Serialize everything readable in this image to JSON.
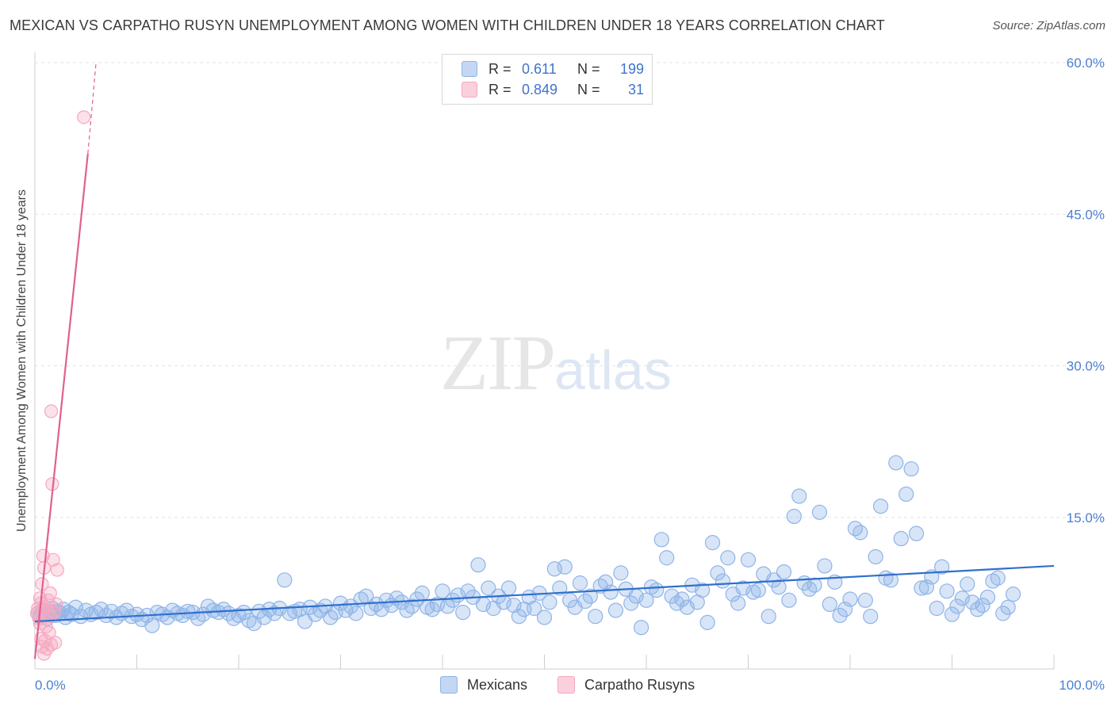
{
  "chart_data": {
    "type": "scatter",
    "title": "MEXICAN VS CARPATHO RUSYN UNEMPLOYMENT AMONG WOMEN WITH CHILDREN UNDER 18 YEARS CORRELATION CHART",
    "source": "Source: ZipAtlas.com",
    "ylabel": "Unemployment Among Women with Children Under 18 years",
    "xlim": [
      0,
      100
    ],
    "ylim": [
      0,
      60
    ],
    "x_tick_labels": [
      "0.0%",
      "100.0%"
    ],
    "y_ticks": [
      15,
      30,
      45,
      60
    ],
    "y_tick_labels": [
      "15.0%",
      "30.0%",
      "45.0%",
      "60.0%"
    ],
    "watermark": {
      "zip": "ZIP",
      "atlas": "atlas"
    },
    "legend": {
      "rows": [
        {
          "r_label": "R =",
          "r_value": "0.611",
          "n_label": "N =",
          "n_value": "199"
        },
        {
          "r_label": "R =",
          "r_value": "0.849",
          "n_label": "N =",
          "n_value": "31"
        }
      ]
    },
    "series": [
      {
        "name": "Mexicans",
        "color": "#8fb4e8",
        "line_color": "#2f6fcc",
        "trend": [
          [
            0,
            4.7
          ],
          [
            100,
            10.2
          ]
        ],
        "points": [
          [
            0.3,
            5.5
          ],
          [
            0.5,
            5.2
          ],
          [
            0.8,
            5.8
          ],
          [
            1.0,
            5.4
          ],
          [
            1.2,
            5.0
          ],
          [
            1.5,
            5.6
          ],
          [
            1.7,
            6.0
          ],
          [
            2.0,
            5.3
          ],
          [
            2.2,
            5.7
          ],
          [
            2.5,
            5.5
          ],
          [
            2.8,
            5.9
          ],
          [
            3.0,
            5.1
          ],
          [
            3.3,
            5.6
          ],
          [
            3.6,
            5.4
          ],
          [
            4.0,
            6.1
          ],
          [
            4.5,
            5.2
          ],
          [
            5.0,
            5.8
          ],
          [
            5.5,
            5.4
          ],
          [
            6.0,
            5.6
          ],
          [
            6.5,
            5.9
          ],
          [
            7.0,
            5.3
          ],
          [
            7.5,
            5.7
          ],
          [
            8.0,
            5.1
          ],
          [
            8.5,
            5.5
          ],
          [
            9.0,
            5.8
          ],
          [
            9.5,
            5.2
          ],
          [
            10.0,
            5.4
          ],
          [
            10.5,
            4.9
          ],
          [
            11.0,
            5.3
          ],
          [
            11.5,
            4.3
          ],
          [
            12.0,
            5.6
          ],
          [
            12.5,
            5.4
          ],
          [
            13.0,
            5.1
          ],
          [
            13.5,
            5.8
          ],
          [
            14.0,
            5.5
          ],
          [
            14.5,
            5.3
          ],
          [
            15.0,
            5.7
          ],
          [
            15.5,
            5.6
          ],
          [
            16.0,
            5.0
          ],
          [
            16.5,
            5.4
          ],
          [
            17.0,
            6.2
          ],
          [
            17.5,
            5.8
          ],
          [
            18.0,
            5.6
          ],
          [
            18.5,
            5.9
          ],
          [
            19.0,
            5.5
          ],
          [
            19.5,
            5.0
          ],
          [
            20.0,
            5.3
          ],
          [
            20.5,
            5.6
          ],
          [
            21.0,
            4.8
          ],
          [
            21.5,
            4.5
          ],
          [
            22.0,
            5.7
          ],
          [
            22.5,
            5.1
          ],
          [
            23.0,
            5.9
          ],
          [
            23.5,
            5.5
          ],
          [
            24.0,
            6.0
          ],
          [
            24.5,
            8.8
          ],
          [
            25.0,
            5.5
          ],
          [
            25.5,
            5.7
          ],
          [
            26.0,
            5.9
          ],
          [
            26.5,
            4.7
          ],
          [
            27.0,
            6.1
          ],
          [
            27.5,
            5.4
          ],
          [
            28.0,
            5.8
          ],
          [
            28.5,
            6.2
          ],
          [
            29.0,
            5.1
          ],
          [
            29.5,
            5.6
          ],
          [
            30.0,
            6.5
          ],
          [
            30.5,
            5.8
          ],
          [
            31.0,
            6.2
          ],
          [
            31.5,
            5.5
          ],
          [
            32.0,
            6.9
          ],
          [
            32.5,
            7.2
          ],
          [
            33.0,
            6.0
          ],
          [
            33.5,
            6.4
          ],
          [
            34.0,
            5.9
          ],
          [
            34.5,
            6.8
          ],
          [
            35.0,
            6.3
          ],
          [
            35.5,
            7.0
          ],
          [
            36.0,
            6.6
          ],
          [
            36.5,
            5.8
          ],
          [
            37.0,
            6.2
          ],
          [
            37.5,
            6.9
          ],
          [
            38.0,
            7.5
          ],
          [
            38.5,
            6.1
          ],
          [
            39.0,
            5.9
          ],
          [
            39.5,
            6.4
          ],
          [
            40.0,
            7.7
          ],
          [
            40.5,
            6.2
          ],
          [
            41.0,
            6.8
          ],
          [
            41.5,
            7.3
          ],
          [
            42.0,
            5.6
          ],
          [
            42.5,
            7.7
          ],
          [
            43.0,
            7.1
          ],
          [
            43.5,
            10.3
          ],
          [
            44.0,
            6.4
          ],
          [
            44.5,
            8.0
          ],
          [
            45.0,
            6.0
          ],
          [
            45.5,
            7.2
          ],
          [
            46.0,
            6.6
          ],
          [
            46.5,
            8.0
          ],
          [
            47.0,
            6.3
          ],
          [
            47.5,
            5.2
          ],
          [
            48.0,
            5.9
          ],
          [
            48.5,
            7.1
          ],
          [
            49.0,
            6.0
          ],
          [
            49.5,
            7.5
          ],
          [
            50.0,
            5.1
          ],
          [
            50.5,
            6.6
          ],
          [
            51.0,
            9.9
          ],
          [
            51.5,
            8.0
          ],
          [
            52.0,
            10.1
          ],
          [
            52.5,
            6.8
          ],
          [
            53.0,
            6.1
          ],
          [
            53.5,
            8.5
          ],
          [
            54.0,
            6.7
          ],
          [
            54.5,
            7.2
          ],
          [
            55.0,
            5.2
          ],
          [
            55.5,
            8.2
          ],
          [
            56.0,
            8.6
          ],
          [
            56.5,
            7.6
          ],
          [
            57.0,
            5.8
          ],
          [
            57.5,
            9.5
          ],
          [
            58.0,
            7.9
          ],
          [
            58.5,
            6.5
          ],
          [
            59.0,
            7.2
          ],
          [
            59.5,
            4.1
          ],
          [
            60.0,
            6.8
          ],
          [
            60.5,
            8.1
          ],
          [
            61.0,
            7.8
          ],
          [
            61.5,
            12.8
          ],
          [
            62.0,
            11.0
          ],
          [
            62.5,
            7.2
          ],
          [
            63.0,
            6.5
          ],
          [
            63.5,
            6.9
          ],
          [
            64.0,
            6.1
          ],
          [
            64.5,
            8.3
          ],
          [
            65.0,
            6.6
          ],
          [
            65.5,
            7.8
          ],
          [
            66.0,
            4.6
          ],
          [
            66.5,
            12.5
          ],
          [
            67.0,
            9.5
          ],
          [
            67.5,
            8.7
          ],
          [
            68.0,
            11.0
          ],
          [
            68.5,
            7.4
          ],
          [
            69.0,
            6.5
          ],
          [
            69.5,
            8.0
          ],
          [
            70.0,
            10.8
          ],
          [
            70.5,
            7.6
          ],
          [
            71.0,
            7.8
          ],
          [
            71.5,
            9.4
          ],
          [
            72.0,
            5.2
          ],
          [
            72.5,
            8.8
          ],
          [
            73.0,
            8.1
          ],
          [
            73.5,
            9.6
          ],
          [
            74.0,
            6.8
          ],
          [
            74.5,
            15.1
          ],
          [
            75.0,
            17.1
          ],
          [
            75.5,
            8.5
          ],
          [
            76.0,
            7.9
          ],
          [
            76.5,
            8.3
          ],
          [
            77.0,
            15.5
          ],
          [
            77.5,
            10.2
          ],
          [
            78.0,
            6.4
          ],
          [
            78.5,
            8.6
          ],
          [
            79.0,
            5.3
          ],
          [
            79.5,
            5.9
          ],
          [
            80.0,
            6.9
          ],
          [
            80.5,
            13.9
          ],
          [
            81.0,
            13.5
          ],
          [
            81.5,
            6.8
          ],
          [
            82.0,
            5.2
          ],
          [
            82.5,
            11.1
          ],
          [
            83.0,
            16.1
          ],
          [
            83.5,
            9.0
          ],
          [
            84.0,
            8.8
          ],
          [
            84.5,
            20.4
          ],
          [
            85.0,
            12.9
          ],
          [
            85.5,
            17.3
          ],
          [
            86.0,
            19.8
          ],
          [
            86.5,
            13.4
          ],
          [
            87.0,
            8.0
          ],
          [
            87.5,
            8.1
          ],
          [
            88.0,
            9.1
          ],
          [
            88.5,
            6.0
          ],
          [
            89.0,
            10.1
          ],
          [
            89.5,
            7.7
          ],
          [
            90.0,
            5.4
          ],
          [
            90.5,
            6.2
          ],
          [
            91.0,
            7.0
          ],
          [
            91.5,
            8.4
          ],
          [
            92.0,
            6.6
          ],
          [
            92.5,
            5.9
          ],
          [
            93.0,
            6.3
          ],
          [
            93.5,
            7.1
          ],
          [
            94.0,
            8.7
          ],
          [
            94.5,
            9.0
          ],
          [
            95.0,
            5.5
          ],
          [
            95.5,
            6.1
          ],
          [
            96.0,
            7.4
          ]
        ]
      },
      {
        "name": "Carpatho Rusyns",
        "color": "#f5a8c0",
        "line_color": "#e0608f",
        "trend": [
          [
            0,
            1.0
          ],
          [
            5.2,
            51.0
          ]
        ],
        "trend_dash": [
          [
            5.2,
            51.0
          ],
          [
            6.0,
            60.0
          ]
        ],
        "points": [
          [
            0.2,
            5.5
          ],
          [
            0.3,
            6.0
          ],
          [
            0.4,
            5.0
          ],
          [
            0.5,
            7.0
          ],
          [
            0.5,
            4.5
          ],
          [
            0.6,
            6.5
          ],
          [
            0.6,
            3.0
          ],
          [
            0.7,
            2.2
          ],
          [
            0.7,
            8.4
          ],
          [
            0.8,
            5.8
          ],
          [
            0.8,
            11.2
          ],
          [
            0.9,
            1.5
          ],
          [
            0.9,
            10.0
          ],
          [
            1.0,
            6.2
          ],
          [
            1.0,
            2.8
          ],
          [
            1.1,
            4.2
          ],
          [
            1.2,
            5.4
          ],
          [
            1.2,
            2.0
          ],
          [
            1.3,
            6.8
          ],
          [
            1.4,
            3.6
          ],
          [
            1.5,
            5.2
          ],
          [
            1.5,
            7.5
          ],
          [
            1.6,
            2.4
          ],
          [
            1.6,
            25.5
          ],
          [
            1.7,
            18.3
          ],
          [
            1.8,
            10.8
          ],
          [
            1.9,
            5.6
          ],
          [
            2.0,
            2.6
          ],
          [
            2.1,
            6.4
          ],
          [
            2.2,
            9.8
          ],
          [
            4.8,
            54.6
          ]
        ]
      }
    ]
  }
}
